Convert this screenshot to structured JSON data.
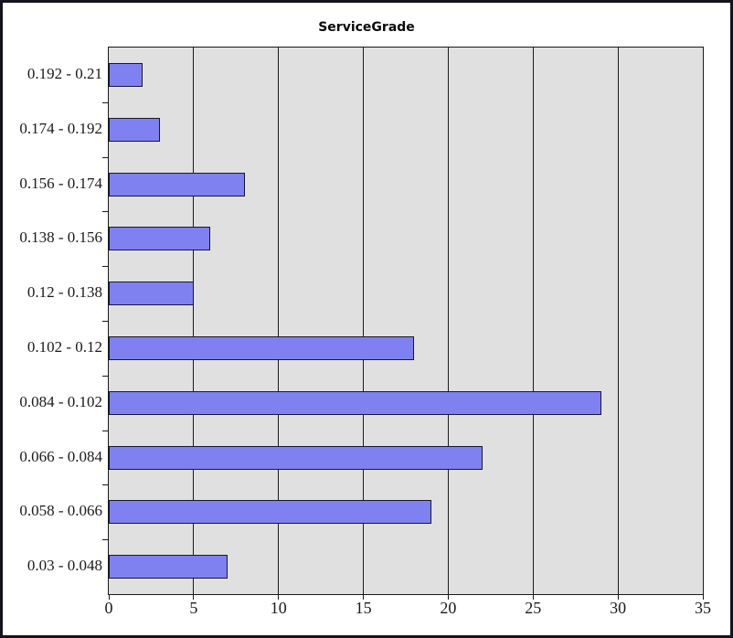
{
  "chart_data": {
    "type": "bar",
    "orientation": "horizontal",
    "title": "ServiceGrade",
    "categories": [
      "0.192 - 0.21",
      "0.174 - 0.192",
      "0.156 - 0.174",
      "0.138 - 0.156",
      "0.12 - 0.138",
      "0.102 - 0.12",
      "0.084 - 0.102",
      "0.066 - 0.084",
      "0.058 - 0.066",
      "0.03 - 0.048"
    ],
    "values": [
      2,
      3,
      8,
      6,
      5,
      18,
      29,
      22,
      19,
      7
    ],
    "xlabel": "",
    "ylabel": "",
    "xlim": [
      0,
      35
    ],
    "x_ticks": [
      0,
      5,
      10,
      15,
      20,
      25,
      30,
      35
    ],
    "grid": true,
    "legend": "none",
    "colors": {
      "bar_fill": "#8081F0",
      "bar_border": "#16172E",
      "plot_background": "#E0E0E0",
      "gridline": "#1A1A1A",
      "frame_border": "#14141C",
      "page_background": "#FFFFFF",
      "text": "#1A1A1A"
    }
  }
}
